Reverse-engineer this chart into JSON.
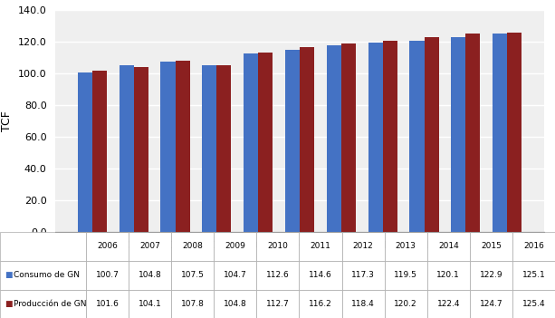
{
  "years": [
    "2006",
    "2007",
    "2008",
    "2009",
    "2010",
    "2011",
    "2012",
    "2013",
    "2014",
    "2015",
    "2016"
  ],
  "consumo": [
    100.7,
    104.8,
    107.5,
    104.7,
    112.6,
    114.6,
    117.3,
    119.5,
    120.1,
    122.9,
    125.1
  ],
  "produccion": [
    101.6,
    104.1,
    107.8,
    104.8,
    112.7,
    116.2,
    118.4,
    120.2,
    122.4,
    124.7,
    125.4
  ],
  "color_consumo": "#4472C4",
  "color_produccion": "#8B2020",
  "ylabel": "TCF",
  "ylim": [
    0,
    140
  ],
  "yticks": [
    0.0,
    20.0,
    40.0,
    60.0,
    80.0,
    100.0,
    120.0,
    140.0
  ],
  "legend_consumo": "Consumo de GN",
  "legend_produccion": "Producción de GN",
  "bar_width": 0.35,
  "background_color": "#EFEFEF",
  "table_row1": [
    "100.7",
    "104.8",
    "107.5",
    "104.7",
    "112.6",
    "114.6",
    "117.3",
    "119.5",
    "120.1",
    "122.9",
    "125.1"
  ],
  "table_row2": [
    "101.6",
    "104.1",
    "107.8",
    "104.8",
    "112.7",
    "116.2",
    "118.4",
    "120.2",
    "122.4",
    "124.7",
    "125.4"
  ]
}
